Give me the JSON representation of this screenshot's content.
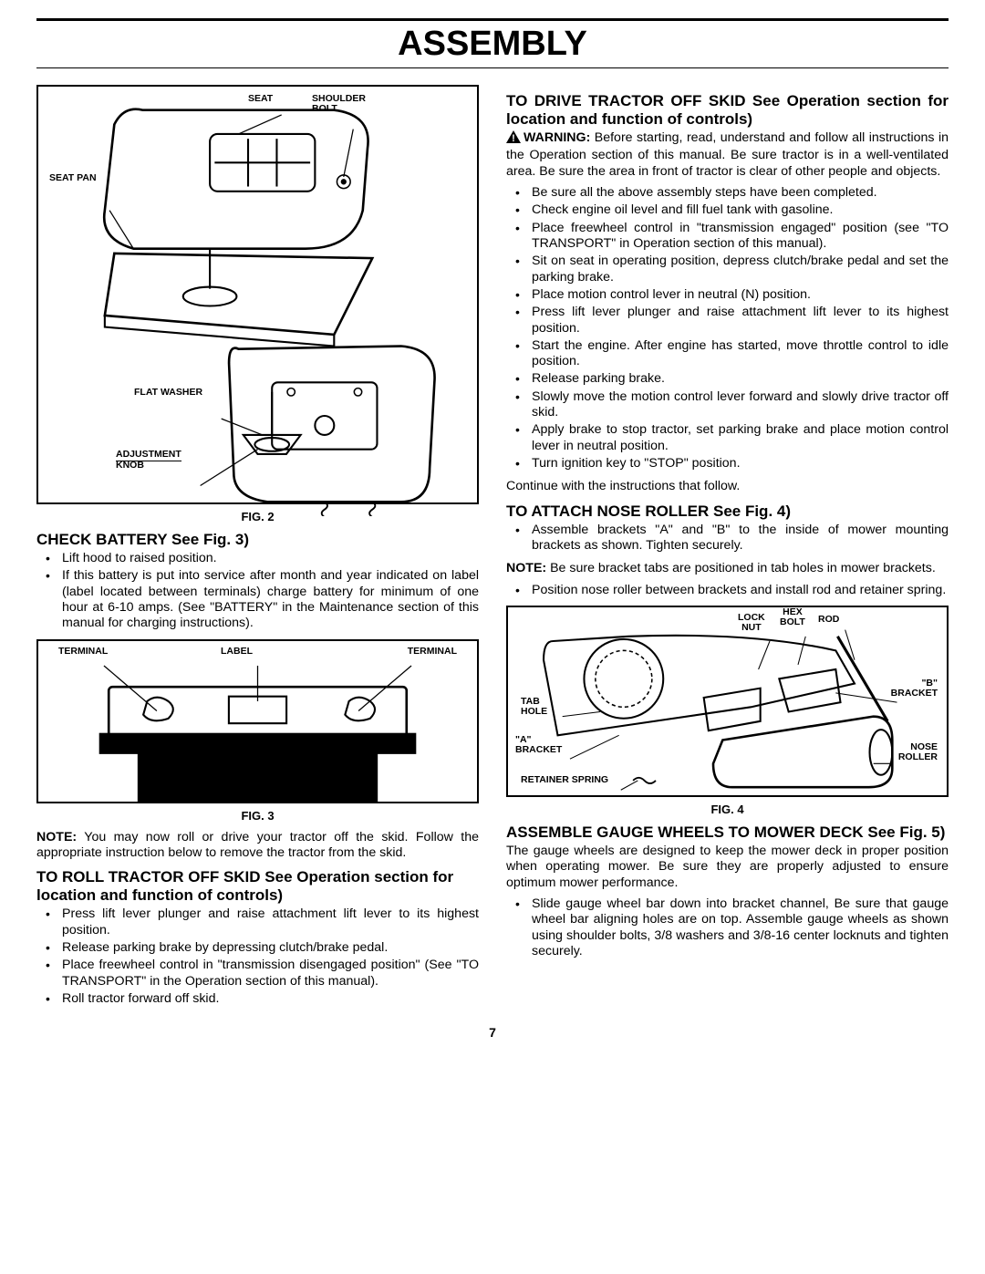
{
  "pageTitle": "ASSEMBLY",
  "pageNumber": "7",
  "left": {
    "fig2": {
      "caption": "FIG. 2",
      "labels": {
        "seat": "SEAT",
        "shoulderBolt": "SHOULDER\nBOLT",
        "seatPan": "SEAT PAN",
        "flatWasher": "FLAT WASHER",
        "adjustmentKnob": "ADJUSTMENT\nKNOB"
      }
    },
    "checkBattery": {
      "heading": "CHECK BATTERY See Fig. 3)",
      "bullets": [
        "Lift hood to raised position.",
        "If this battery is put into service after month and year indicated on label (label located between terminals) charge battery for minimum of one hour at 6-10 amps. (See \"BATTERY\" in the Maintenance section of this manual for charging instructions)."
      ]
    },
    "fig3": {
      "caption": "FIG. 3",
      "labels": {
        "terminalLeft": "TERMINAL",
        "label": "LABEL",
        "terminalRight": "TERMINAL"
      }
    },
    "noteAfterFig3": "You may now roll or drive your tractor off the skid. Follow the appropriate instruction below to remove the tractor from the skid.",
    "rollOffSkid": {
      "heading": "TO ROLL TRACTOR OFF SKID  See Operation section for location and function of controls)",
      "bullets": [
        "Press lift lever plunger and raise attachment lift lever to its highest position.",
        "Release parking brake by depressing clutch/brake pedal.",
        "Place freewheel control in \"transmission disengaged position\" (See \"TO TRANSPORT\" in the Operation section of this manual).",
        "Roll tractor forward off skid."
      ]
    }
  },
  "right": {
    "driveOffSkid": {
      "heading": "TO DRIVE TRACTOR OFF SKID See Operation section for location and function of controls)",
      "warningLabel": "WARNING:",
      "warningText": " Before starting, read, understand and follow all instructions in the Operation section of this manual. Be sure tractor is in a well-ventilated area. Be sure the area in front of tractor is clear of other people and objects.",
      "bullets": [
        "Be sure all the above assembly steps have been completed.",
        "Check engine oil level and fill fuel tank with gasoline.",
        "Place freewheel control in \"transmission engaged\" position (see \"TO TRANSPORT\" in Operation section of this manual).",
        "Sit on seat in operating position, depress clutch/brake pedal and set the parking brake.",
        "Place motion control lever in neutral (N) position.",
        "Press lift lever plunger and raise attachment lift lever to its highest position.",
        "Start the engine. After engine has started, move throttle control to idle position.",
        "Release parking brake.",
        "Slowly move the motion control lever forward and slowly drive tractor off skid.",
        "Apply brake to stop tractor, set parking brake and place motion control lever in neutral position.",
        "Turn ignition key to \"STOP\" position."
      ],
      "continueText": "Continue with the instructions that follow."
    },
    "noseRoller": {
      "heading": "TO ATTACH NOSE ROLLER  See Fig. 4)",
      "bullets1": [
        "Assemble brackets \"A\" and \"B\" to the inside of mower mounting brackets as shown.  Tighten securely."
      ],
      "noteText": "Be sure bracket tabs are positioned in tab holes in mower brackets.",
      "bullets2": [
        "Position nose roller between brackets and install rod and retainer spring."
      ]
    },
    "fig4": {
      "caption": "FIG. 4",
      "labels": {
        "lockNut": "LOCK\nNUT",
        "hexBolt": "HEX\nBOLT",
        "rod": "ROD",
        "tabHole": "TAB\nHOLE",
        "bBracket": "\"B\"\nBRACKET",
        "aBracket": "\"A\"\nBRACKET",
        "noseRoller": "NOSE\nROLLER",
        "retainerSpring": "RETAINER SPRING"
      }
    },
    "gaugeWheels": {
      "heading": "ASSEMBLE GAUGE WHEELS TO MOWER DECK See Fig. 5)",
      "body": "The gauge wheels are designed to keep the mower deck in proper position when operating mower. Be sure they are properly adjusted to ensure optimum mower performance.",
      "bullets": [
        "Slide gauge wheel bar down into bracket channel, Be sure that gauge wheel bar aligning holes are on top. Assemble gauge wheels as shown using shoulder bolts, 3/8 washers and 3/8-16 center locknuts and tighten securely."
      ]
    }
  }
}
